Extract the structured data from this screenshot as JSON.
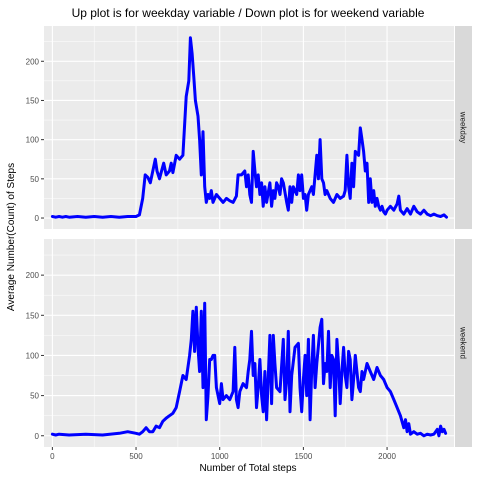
{
  "chart_data": {
    "type": "line",
    "title": "Up plot is for weekday variable / Down plot is for weekend variable",
    "xlabel": "Number of Total steps",
    "ylabel": "Average Number(Count) of Steps",
    "xlim": [
      -50,
      2400
    ],
    "ylim": [
      -14,
      245
    ],
    "x_ticks": [
      0,
      500,
      1000,
      1500,
      2000
    ],
    "y_ticks": [
      0,
      50,
      100,
      150,
      200
    ],
    "grid": true,
    "line_color": "#0000ff",
    "panel_background": "#ebebeb",
    "strip_background": "#d9d9d9",
    "panels": [
      {
        "name": "weekday",
        "points": [
          [
            0,
            2
          ],
          [
            20,
            1
          ],
          [
            40,
            2
          ],
          [
            60,
            1
          ],
          [
            80,
            2
          ],
          [
            100,
            1
          ],
          [
            150,
            2
          ],
          [
            200,
            1
          ],
          [
            250,
            2
          ],
          [
            300,
            1
          ],
          [
            350,
            2
          ],
          [
            400,
            1
          ],
          [
            450,
            2
          ],
          [
            500,
            2
          ],
          [
            520,
            4
          ],
          [
            540,
            25
          ],
          [
            555,
            55
          ],
          [
            570,
            52
          ],
          [
            585,
            45
          ],
          [
            600,
            60
          ],
          [
            615,
            75
          ],
          [
            625,
            60
          ],
          [
            640,
            50
          ],
          [
            655,
            62
          ],
          [
            665,
            70
          ],
          [
            680,
            55
          ],
          [
            700,
            60
          ],
          [
            710,
            70
          ],
          [
            720,
            58
          ],
          [
            740,
            80
          ],
          [
            760,
            75
          ],
          [
            780,
            80
          ],
          [
            800,
            155
          ],
          [
            815,
            175
          ],
          [
            825,
            230
          ],
          [
            835,
            210
          ],
          [
            845,
            180
          ],
          [
            855,
            150
          ],
          [
            870,
            130
          ],
          [
            880,
            100
          ],
          [
            890,
            55
          ],
          [
            900,
            110
          ],
          [
            910,
            40
          ],
          [
            920,
            20
          ],
          [
            930,
            30
          ],
          [
            940,
            25
          ],
          [
            950,
            35
          ],
          [
            960,
            20
          ],
          [
            980,
            30
          ],
          [
            1000,
            25
          ],
          [
            1020,
            20
          ],
          [
            1040,
            25
          ],
          [
            1060,
            22
          ],
          [
            1080,
            20
          ],
          [
            1100,
            28
          ],
          [
            1110,
            55
          ],
          [
            1130,
            55
          ],
          [
            1150,
            60
          ],
          [
            1160,
            40
          ],
          [
            1170,
            55
          ],
          [
            1180,
            30
          ],
          [
            1190,
            20
          ],
          [
            1200,
            85
          ],
          [
            1210,
            60
          ],
          [
            1220,
            40
          ],
          [
            1230,
            55
          ],
          [
            1240,
            30
          ],
          [
            1250,
            45
          ],
          [
            1260,
            15
          ],
          [
            1270,
            40
          ],
          [
            1280,
            20
          ],
          [
            1300,
            45
          ],
          [
            1310,
            15
          ],
          [
            1320,
            35
          ],
          [
            1330,
            25
          ],
          [
            1340,
            45
          ],
          [
            1350,
            40
          ],
          [
            1360,
            30
          ],
          [
            1370,
            50
          ],
          [
            1380,
            45
          ],
          [
            1400,
            20
          ],
          [
            1410,
            10
          ],
          [
            1420,
            40
          ],
          [
            1430,
            20
          ],
          [
            1440,
            40
          ],
          [
            1460,
            30
          ],
          [
            1470,
            55
          ],
          [
            1480,
            35
          ],
          [
            1490,
            55
          ],
          [
            1500,
            25
          ],
          [
            1510,
            30
          ],
          [
            1520,
            10
          ],
          [
            1530,
            30
          ],
          [
            1550,
            40
          ],
          [
            1560,
            30
          ],
          [
            1580,
            80
          ],
          [
            1590,
            50
          ],
          [
            1600,
            100
          ],
          [
            1610,
            50
          ],
          [
            1620,
            45
          ],
          [
            1630,
            30
          ],
          [
            1640,
            35
          ],
          [
            1660,
            25
          ],
          [
            1680,
            20
          ],
          [
            1700,
            30
          ],
          [
            1720,
            25
          ],
          [
            1740,
            28
          ],
          [
            1750,
            35
          ],
          [
            1760,
            80
          ],
          [
            1770,
            40
          ],
          [
            1780,
            25
          ],
          [
            1790,
            70
          ],
          [
            1800,
            40
          ],
          [
            1810,
            85
          ],
          [
            1830,
            80
          ],
          [
            1840,
            115
          ],
          [
            1850,
            100
          ],
          [
            1860,
            85
          ],
          [
            1870,
            60
          ],
          [
            1880,
            70
          ],
          [
            1890,
            20
          ],
          [
            1900,
            50
          ],
          [
            1910,
            20
          ],
          [
            1920,
            35
          ],
          [
            1930,
            15
          ],
          [
            1940,
            25
          ],
          [
            1950,
            15
          ],
          [
            1960,
            10
          ],
          [
            1970,
            15
          ],
          [
            1980,
            8
          ],
          [
            1990,
            5
          ],
          [
            2000,
            10
          ],
          [
            2020,
            15
          ],
          [
            2040,
            10
          ],
          [
            2060,
            18
          ],
          [
            2070,
            28
          ],
          [
            2080,
            10
          ],
          [
            2100,
            5
          ],
          [
            2120,
            12
          ],
          [
            2140,
            5
          ],
          [
            2160,
            15
          ],
          [
            2180,
            8
          ],
          [
            2200,
            5
          ],
          [
            2220,
            10
          ],
          [
            2240,
            5
          ],
          [
            2260,
            3
          ],
          [
            2280,
            5
          ],
          [
            2300,
            3
          ],
          [
            2320,
            2
          ],
          [
            2340,
            4
          ],
          [
            2355,
            1
          ]
        ]
      },
      {
        "name": "weekend",
        "points": [
          [
            0,
            2
          ],
          [
            20,
            1
          ],
          [
            40,
            2
          ],
          [
            100,
            1
          ],
          [
            200,
            2
          ],
          [
            300,
            1
          ],
          [
            400,
            3
          ],
          [
            450,
            5
          ],
          [
            500,
            3
          ],
          [
            520,
            2
          ],
          [
            540,
            5
          ],
          [
            560,
            10
          ],
          [
            580,
            5
          ],
          [
            600,
            5
          ],
          [
            620,
            12
          ],
          [
            640,
            10
          ],
          [
            660,
            18
          ],
          [
            680,
            22
          ],
          [
            700,
            25
          ],
          [
            720,
            28
          ],
          [
            740,
            35
          ],
          [
            760,
            55
          ],
          [
            780,
            75
          ],
          [
            800,
            70
          ],
          [
            820,
            100
          ],
          [
            830,
            120
          ],
          [
            840,
            155
          ],
          [
            850,
            105
          ],
          [
            860,
            160
          ],
          [
            870,
            110
          ],
          [
            880,
            80
          ],
          [
            890,
            155
          ],
          [
            900,
            60
          ],
          [
            910,
            165
          ],
          [
            920,
            20
          ],
          [
            930,
            50
          ],
          [
            940,
            95
          ],
          [
            950,
            95
          ],
          [
            960,
            100
          ],
          [
            970,
            100
          ],
          [
            980,
            60
          ],
          [
            1000,
            40
          ],
          [
            1010,
            65
          ],
          [
            1020,
            45
          ],
          [
            1040,
            50
          ],
          [
            1060,
            45
          ],
          [
            1080,
            55
          ],
          [
            1090,
            110
          ],
          [
            1100,
            45
          ],
          [
            1110,
            35
          ],
          [
            1120,
            55
          ],
          [
            1140,
            65
          ],
          [
            1160,
            60
          ],
          [
            1170,
            80
          ],
          [
            1180,
            95
          ],
          [
            1190,
            130
          ],
          [
            1200,
            75
          ],
          [
            1210,
            90
          ],
          [
            1220,
            35
          ],
          [
            1230,
            60
          ],
          [
            1240,
            95
          ],
          [
            1250,
            50
          ],
          [
            1260,
            30
          ],
          [
            1270,
            80
          ],
          [
            1280,
            20
          ],
          [
            1300,
            125
          ],
          [
            1310,
            40
          ],
          [
            1320,
            125
          ],
          [
            1330,
            90
          ],
          [
            1340,
            60
          ],
          [
            1360,
            55
          ],
          [
            1380,
            120
          ],
          [
            1390,
            45
          ],
          [
            1400,
            70
          ],
          [
            1410,
            130
          ],
          [
            1420,
            30
          ],
          [
            1430,
            75
          ],
          [
            1450,
            110
          ],
          [
            1470,
            115
          ],
          [
            1480,
            60
          ],
          [
            1490,
            30
          ],
          [
            1500,
            70
          ],
          [
            1510,
            100
          ],
          [
            1520,
            50
          ],
          [
            1530,
            120
          ],
          [
            1540,
            20
          ],
          [
            1550,
            85
          ],
          [
            1560,
            125
          ],
          [
            1570,
            60
          ],
          [
            1580,
            90
          ],
          [
            1600,
            135
          ],
          [
            1610,
            145
          ],
          [
            1620,
            65
          ],
          [
            1630,
            90
          ],
          [
            1640,
            80
          ],
          [
            1650,
            130
          ],
          [
            1660,
            60
          ],
          [
            1670,
            100
          ],
          [
            1680,
            95
          ],
          [
            1690,
            25
          ],
          [
            1700,
            120
          ],
          [
            1710,
            90
          ],
          [
            1720,
            40
          ],
          [
            1730,
            80
          ],
          [
            1740,
            110
          ],
          [
            1750,
            75
          ],
          [
            1760,
            60
          ],
          [
            1770,
            105
          ],
          [
            1780,
            95
          ],
          [
            1790,
            45
          ],
          [
            1800,
            70
          ],
          [
            1810,
            100
          ],
          [
            1820,
            80
          ],
          [
            1830,
            60
          ],
          [
            1840,
            55
          ],
          [
            1850,
            80
          ],
          [
            1860,
            70
          ],
          [
            1880,
            90
          ],
          [
            1900,
            80
          ],
          [
            1920,
            70
          ],
          [
            1940,
            85
          ],
          [
            1960,
            75
          ],
          [
            1980,
            70
          ],
          [
            2000,
            60
          ],
          [
            2020,
            55
          ],
          [
            2040,
            45
          ],
          [
            2060,
            35
          ],
          [
            2080,
            25
          ],
          [
            2100,
            10
          ],
          [
            2110,
            20
          ],
          [
            2120,
            5
          ],
          [
            2130,
            15
          ],
          [
            2140,
            2
          ],
          [
            2160,
            5
          ],
          [
            2180,
            2
          ],
          [
            2200,
            3
          ],
          [
            2220,
            0
          ],
          [
            2240,
            2
          ],
          [
            2260,
            1
          ],
          [
            2280,
            2
          ],
          [
            2300,
            8
          ],
          [
            2310,
            0
          ],
          [
            2320,
            12
          ],
          [
            2330,
            5
          ],
          [
            2340,
            8
          ],
          [
            2350,
            3
          ]
        ]
      }
    ]
  }
}
